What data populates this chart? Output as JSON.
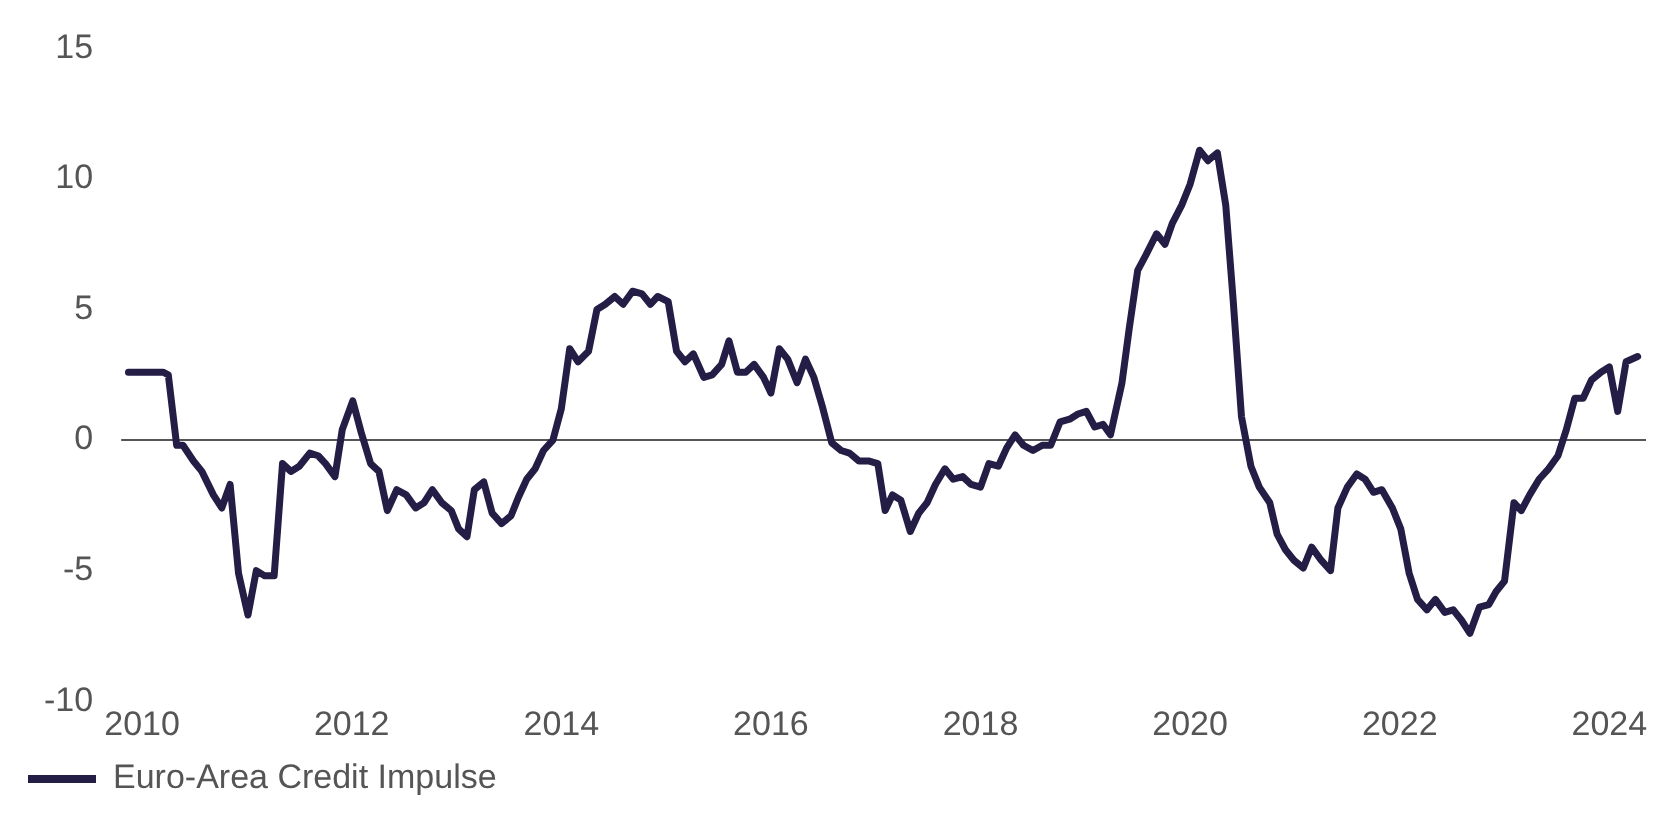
{
  "chart_data": {
    "type": "line",
    "x": [
      2009.87,
      2010.2,
      2010.25,
      2010.33,
      2010.39,
      2010.49,
      2010.57,
      2010.68,
      2010.76,
      2010.84,
      2010.92,
      2011.01,
      2011.09,
      2011.17,
      2011.26,
      2011.34,
      2011.42,
      2011.5,
      2011.6,
      2011.68,
      2011.75,
      2011.84,
      2011.91,
      2012.01,
      2012.09,
      2012.18,
      2012.26,
      2012.34,
      2012.43,
      2012.52,
      2012.61,
      2012.69,
      2012.77,
      2012.86,
      2012.95,
      2013.02,
      2013.1,
      2013.17,
      2013.26,
      2013.34,
      2013.43,
      2013.52,
      2013.59,
      2013.67,
      2013.75,
      2013.83,
      2013.92,
      2014.0,
      2014.08,
      2014.16,
      2014.26,
      2014.34,
      2014.42,
      2014.51,
      2014.59,
      2014.68,
      2014.77,
      2014.85,
      2014.92,
      2015.02,
      2015.1,
      2015.18,
      2015.26,
      2015.36,
      2015.44,
      2015.53,
      2015.6,
      2015.68,
      2015.76,
      2015.84,
      2015.93,
      2016.0,
      2016.08,
      2016.16,
      2016.25,
      2016.33,
      2016.41,
      2016.49,
      2016.58,
      2016.67,
      2016.75,
      2016.84,
      2016.93,
      2017.02,
      2017.09,
      2017.16,
      2017.24,
      2017.33,
      2017.41,
      2017.49,
      2017.57,
      2017.66,
      2017.74,
      2017.83,
      2017.91,
      2018.0,
      2018.08,
      2018.17,
      2018.25,
      2018.33,
      2018.41,
      2018.5,
      2018.59,
      2018.67,
      2018.76,
      2018.85,
      2018.93,
      2019.01,
      2019.09,
      2019.17,
      2019.24,
      2019.35,
      2019.42,
      2019.5,
      2019.58,
      2019.68,
      2019.76,
      2019.83,
      2019.92,
      2020.0,
      2020.09,
      2020.17,
      2020.26,
      2020.34,
      2020.41,
      2020.49,
      2020.58,
      2020.66,
      2020.76,
      2020.83,
      2020.91,
      2020.99,
      2021.08,
      2021.16,
      2021.25,
      2021.34,
      2021.41,
      2021.5,
      2021.59,
      2021.67,
      2021.75,
      2021.83,
      2021.93,
      2022.01,
      2022.09,
      2022.17,
      2022.26,
      2022.34,
      2022.43,
      2022.51,
      2022.59,
      2022.67,
      2022.76,
      2022.85,
      2022.92,
      2023.0,
      2023.09,
      2023.16,
      2023.24,
      2023.33,
      2023.42,
      2023.51,
      2023.59,
      2023.67,
      2023.75,
      2023.83,
      2023.92,
      2024.0,
      2024.08,
      2024.16,
      2024.27
    ],
    "series": [
      {
        "name": "Euro-Area Credit Impulse",
        "color": "#241d45",
        "values": [
          2.6,
          2.6,
          2.5,
          -0.2,
          -0.2,
          -0.8,
          -1.2,
          -2.1,
          -2.6,
          -1.7,
          -5.1,
          -6.7,
          -5.0,
          -5.2,
          -5.2,
          -0.9,
          -1.2,
          -1.0,
          -0.5,
          -0.6,
          -0.9,
          -1.4,
          0.4,
          1.5,
          0.3,
          -0.9,
          -1.2,
          -2.7,
          -1.9,
          -2.1,
          -2.6,
          -2.4,
          -1.9,
          -2.4,
          -2.7,
          -3.4,
          -3.7,
          -1.9,
          -1.6,
          -2.8,
          -3.2,
          -2.9,
          -2.2,
          -1.5,
          -1.1,
          -0.4,
          0.0,
          1.2,
          3.5,
          3.0,
          3.4,
          5.0,
          5.2,
          5.5,
          5.2,
          5.7,
          5.6,
          5.2,
          5.5,
          5.3,
          3.4,
          3.0,
          3.3,
          2.4,
          2.5,
          2.9,
          3.8,
          2.6,
          2.6,
          2.9,
          2.4,
          1.8,
          3.5,
          3.1,
          2.2,
          3.1,
          2.4,
          1.3,
          -0.1,
          -0.4,
          -0.5,
          -0.8,
          -0.8,
          -0.9,
          -2.7,
          -2.1,
          -2.3,
          -3.5,
          -2.8,
          -2.4,
          -1.7,
          -1.1,
          -1.5,
          -1.4,
          -1.7,
          -1.8,
          -0.9,
          -1.0,
          -0.3,
          0.2,
          -0.2,
          -0.4,
          -0.2,
          -0.2,
          0.7,
          0.8,
          1.0,
          1.1,
          0.5,
          0.6,
          0.2,
          2.2,
          4.3,
          6.5,
          7.1,
          7.9,
          7.5,
          8.3,
          9.0,
          9.8,
          11.1,
          10.7,
          11.0,
          9.0,
          5.4,
          0.9,
          -1.0,
          -1.8,
          -2.4,
          -3.6,
          -4.2,
          -4.6,
          -4.9,
          -4.1,
          -4.6,
          -5.0,
          -2.6,
          -1.8,
          -1.3,
          -1.5,
          -2.0,
          -1.9,
          -2.6,
          -3.4,
          -5.1,
          -6.1,
          -6.5,
          -6.1,
          -6.6,
          -6.5,
          -6.9,
          -7.4,
          -6.4,
          -6.3,
          -5.8,
          -5.4,
          -2.4,
          -2.7,
          -2.1,
          -1.5,
          -1.1,
          -0.6,
          0.4,
          1.6,
          1.6,
          2.3,
          2.6,
          2.8,
          1.1,
          3.0,
          3.2
        ]
      }
    ],
    "xlim": [
      2009.8,
      2024.35
    ],
    "xticks": [
      2010,
      2012,
      2014,
      2016,
      2018,
      2020,
      2022,
      2024
    ],
    "ylim": [
      -10,
      15
    ],
    "yticks": [
      -10,
      -5,
      0,
      5,
      10,
      15
    ],
    "ref_lines": [
      {
        "axis": "y",
        "value": 0,
        "color": "#555555"
      }
    ],
    "legend": "bottom left",
    "marker": "none",
    "line_style": "solid"
  }
}
